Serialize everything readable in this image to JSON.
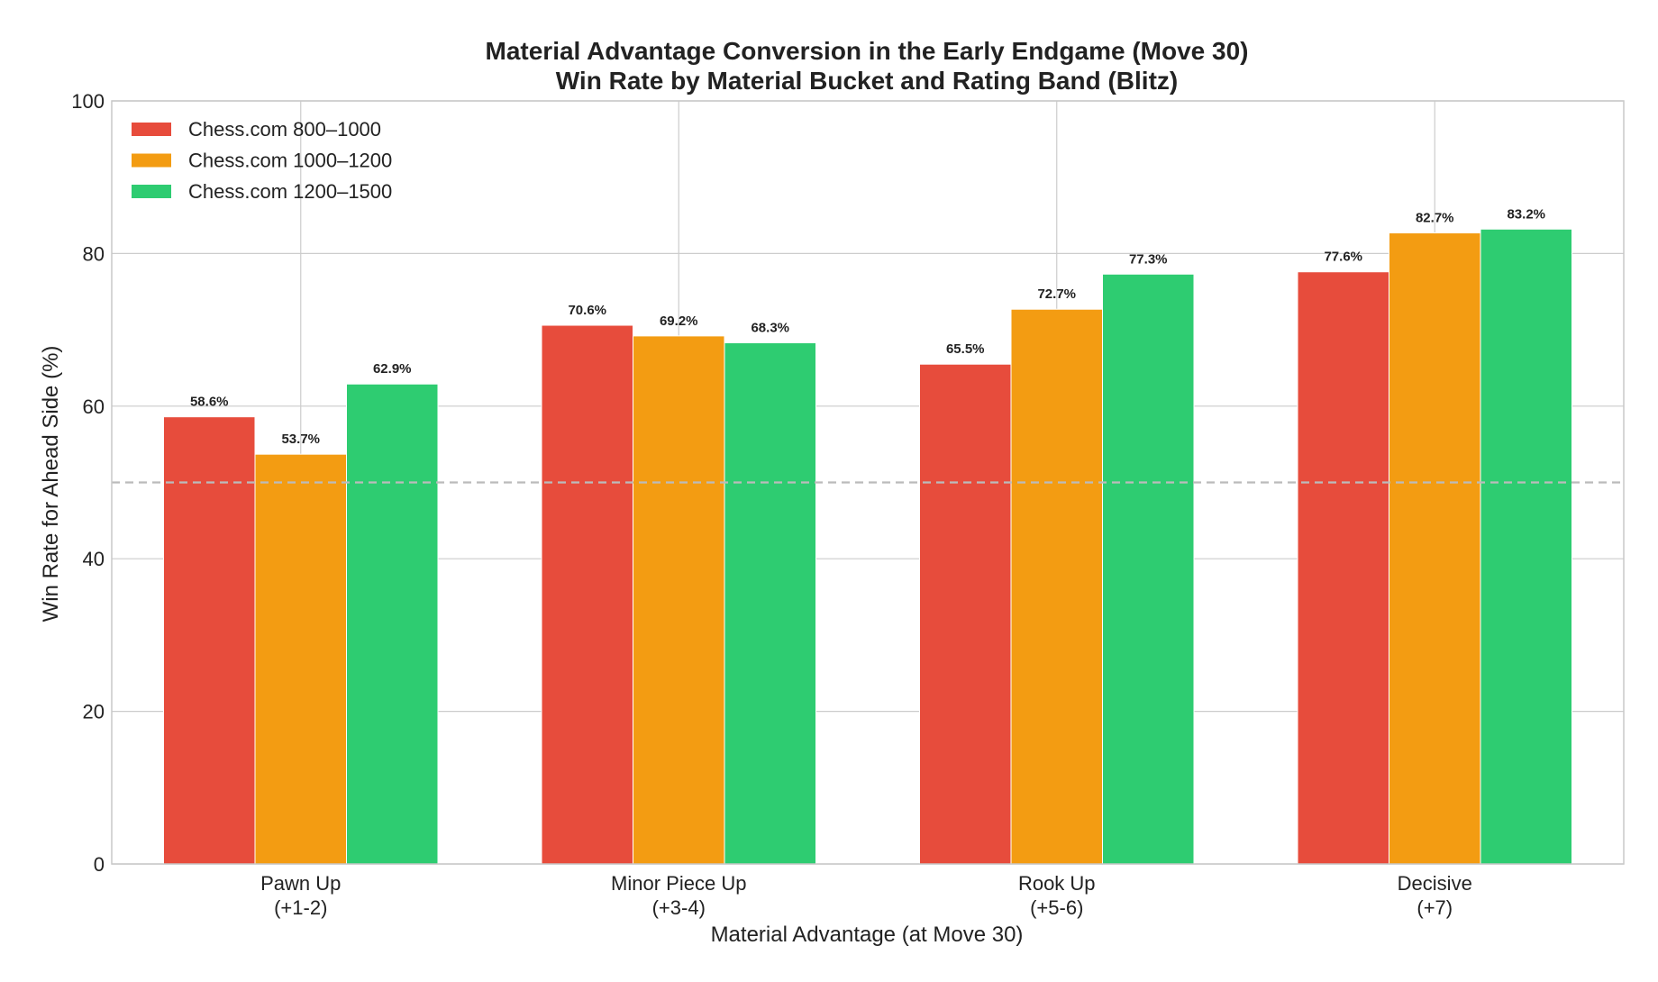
{
  "chart_data": {
    "type": "bar",
    "title": "Material Advantage Conversion in the Early Endgame (Move 30)",
    "subtitle": "Win Rate by Material Bucket and Rating Band (Blitz)",
    "xlabel": "Material Advantage (at Move 30)",
    "ylabel": "Win Rate for Ahead Side (%)",
    "ylim": [
      0,
      100
    ],
    "yticks": [
      0,
      20,
      40,
      60,
      80,
      100
    ],
    "grid": true,
    "legend_position": "top-left",
    "reference_line": {
      "y": 50,
      "style": "dashed"
    },
    "categories": [
      {
        "line1": "Pawn Up",
        "line2": "(+1-2)"
      },
      {
        "line1": "Minor Piece Up",
        "line2": "(+3-4)"
      },
      {
        "line1": "Rook Up",
        "line2": "(+5-6)"
      },
      {
        "line1": "Decisive",
        "line2": "(+7)"
      }
    ],
    "series": [
      {
        "name": "Chess.com 800–1000",
        "color": "#e74c3c",
        "values": [
          58.6,
          70.6,
          65.5,
          77.6
        ],
        "labels": [
          "58.6%",
          "70.6%",
          "65.5%",
          "77.6%"
        ]
      },
      {
        "name": "Chess.com 1000–1200",
        "color": "#f39c12",
        "values": [
          53.7,
          69.2,
          72.7,
          82.7
        ],
        "labels": [
          "53.7%",
          "69.2%",
          "72.7%",
          "82.7%"
        ]
      },
      {
        "name": "Chess.com 1200–1500",
        "color": "#2ecc71",
        "values": [
          62.9,
          68.3,
          77.3,
          83.2
        ],
        "labels": [
          "62.9%",
          "68.3%",
          "77.3%",
          "83.2%"
        ]
      }
    ]
  }
}
